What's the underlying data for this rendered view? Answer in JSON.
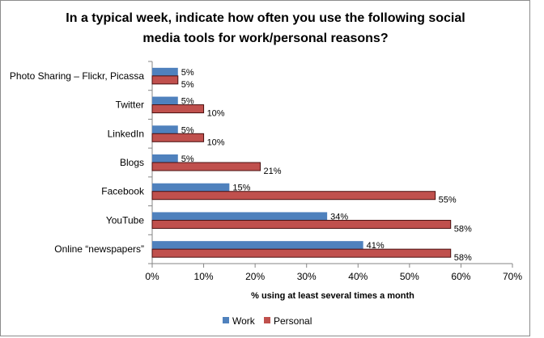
{
  "chart_data": {
    "type": "bar",
    "orientation": "horizontal",
    "title": "In a typical week, indicate how often you use the following social media tools for work/personal reasons?",
    "title_lines": [
      "In a typical week, indicate how often you use the following social",
      "media tools for work/personal reasons?"
    ],
    "categories": [
      "Photo Sharing – Flickr, Picassa",
      "Twitter",
      "LinkedIn",
      "Blogs",
      "Facebook",
      "YouTube",
      "Online “newspapers”"
    ],
    "series": [
      {
        "name": "Work",
        "values": [
          5,
          5,
          5,
          5,
          15,
          34,
          41
        ],
        "labels": [
          "5%",
          "5%",
          "5%",
          "5%",
          "15%",
          "34%",
          "41%"
        ],
        "color": "#4f81bd",
        "stroke": "#17375e"
      },
      {
        "name": "Personal",
        "values": [
          5,
          10,
          10,
          21,
          55,
          58,
          58
        ],
        "labels": [
          "5%",
          "10%",
          "10%",
          "21%",
          "55%",
          "58%",
          "58%"
        ],
        "color": "#c0504d",
        "stroke": "#4a1010"
      }
    ],
    "xlabel": "% using at least several times a month",
    "ylabel": "",
    "xlim": [
      0,
      70
    ],
    "xticks": [
      "0%",
      "10%",
      "20%",
      "30%",
      "40%",
      "50%",
      "60%",
      "70%"
    ],
    "grid": false,
    "legend_position": "bottom"
  }
}
